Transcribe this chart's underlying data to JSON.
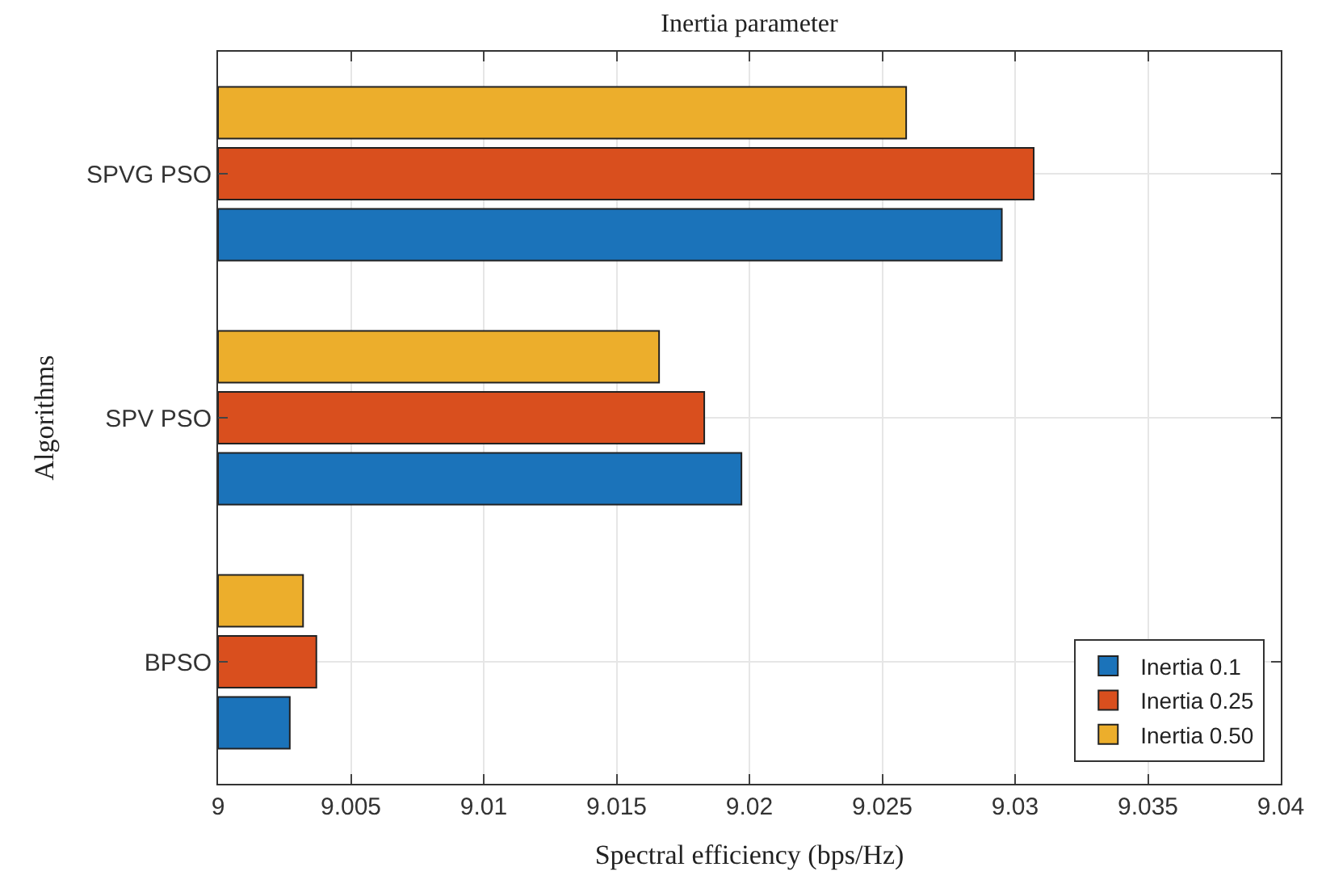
{
  "chart_data": {
    "type": "bar",
    "orientation": "horizontal",
    "title": "Inertia parameter",
    "xlabel": "Spectral efficiency (bps/Hz)",
    "ylabel": "Algorithms",
    "categories": [
      "SPVG PSO",
      "SPV PSO",
      "BPSO"
    ],
    "series": [
      {
        "name": "Inertia 0.1",
        "color": "#1b73ba",
        "values": [
          9.0295,
          9.0197,
          9.0027
        ]
      },
      {
        "name": "Inertia 0.25",
        "color": "#d94f1e",
        "values": [
          9.0307,
          9.0183,
          9.0037
        ]
      },
      {
        "name": "Inertia 0.50",
        "color": "#ecae2c",
        "values": [
          9.0259,
          9.0166,
          9.0032
        ]
      }
    ],
    "xlim": [
      9,
      9.04
    ],
    "xticks": [
      9,
      9.005,
      9.01,
      9.015,
      9.02,
      9.025,
      9.03,
      9.035,
      9.04
    ],
    "grid": true,
    "legend": "bottom right"
  }
}
